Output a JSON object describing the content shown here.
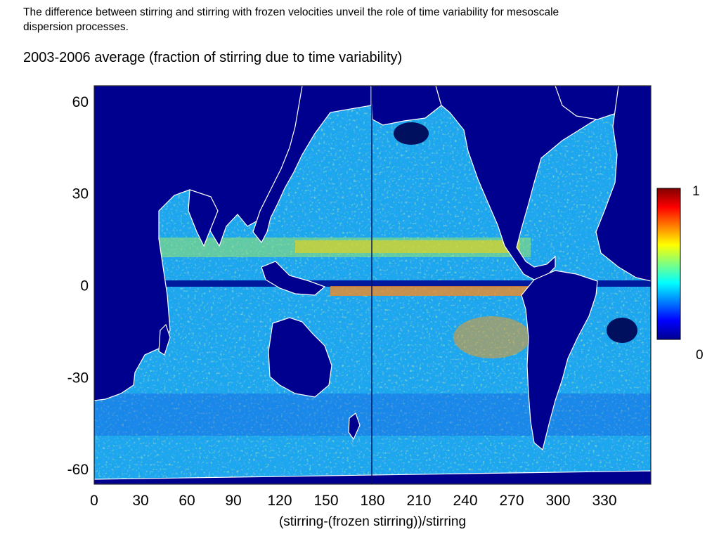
{
  "caption": "The difference between stirring and stirring with frozen velocities unveil the role of time variability for mesoscale\n dispersion processes.",
  "subtitle": "2003-2006 average (fraction of stirring due to time variability)",
  "colors": {
    "land": "#00008f",
    "coastline": "#ffffff",
    "colormap": "jet"
  },
  "chart_data": {
    "type": "heatmap",
    "title": "2003-2006 average (fraction of stirring due to time variability)",
    "xlabel": "(stirring-(frozen stirring))/stirring",
    "ylabel": "",
    "x_ticks": [
      0,
      30,
      60,
      90,
      120,
      150,
      180,
      210,
      240,
      270,
      300,
      330
    ],
    "y_ticks": [
      60,
      30,
      0,
      -30,
      -60
    ],
    "xlim": [
      0,
      360
    ],
    "ylim": [
      -65,
      65
    ],
    "colorbar": {
      "min": 0,
      "max": 1,
      "min_label": "0",
      "max_label": "1",
      "colormap": "jet"
    },
    "grid": false,
    "features": [
      {
        "feature": "equatorial band of low values (dark blue) at latitude 0",
        "value": 0.05
      },
      {
        "feature": "elevated band (orange/red) just south of the equator, 180-270 E",
        "value": 0.8
      },
      {
        "feature": "elevated band (yellow/orange) near 10 N, 100-270 E",
        "value": 0.7
      },
      {
        "feature": "typical open-ocean value (cyan/green)",
        "value": 0.4
      }
    ]
  }
}
